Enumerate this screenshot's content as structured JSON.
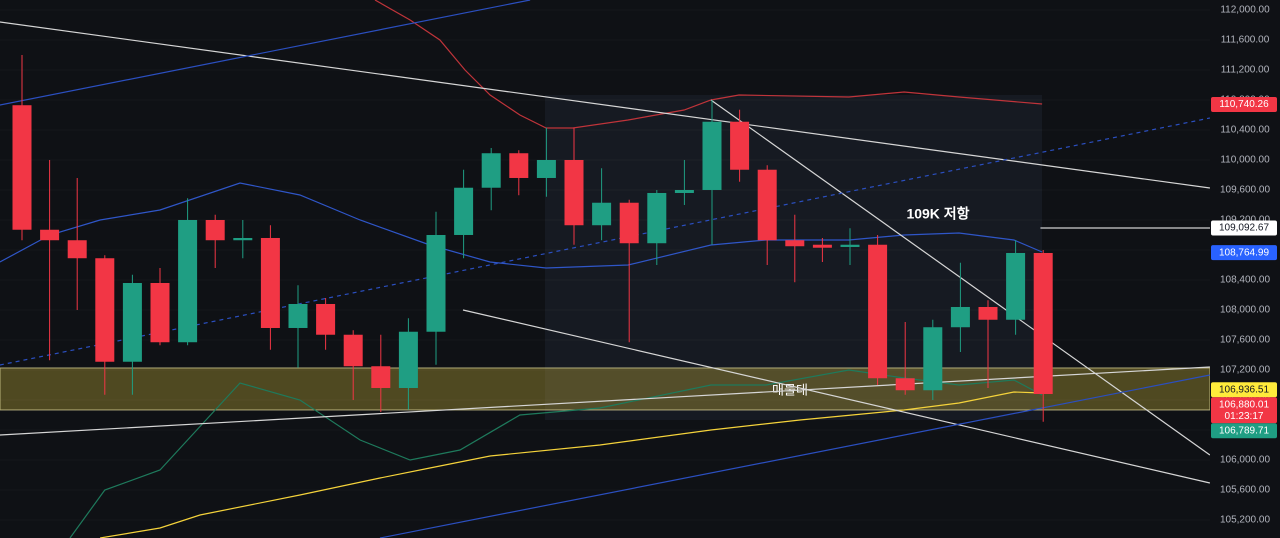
{
  "chart_data": {
    "type": "candlestick",
    "up_color": "#1f9e83",
    "down_color": "#f23645",
    "background": "#0f1115",
    "ylim": [
      104960,
      112133
    ],
    "grid": true,
    "yticks": [
      {
        "value": 112000,
        "label": "112,000.00"
      },
      {
        "value": 111600,
        "label": "111,600.00"
      },
      {
        "value": 111200,
        "label": "111,200.00"
      },
      {
        "value": 110800,
        "label": "110,800.00"
      },
      {
        "value": 110400,
        "label": "110,400.00"
      },
      {
        "value": 110000,
        "label": "110,000.00"
      },
      {
        "value": 109600,
        "label": "109,600.00"
      },
      {
        "value": 109200,
        "label": "109,200.00"
      },
      {
        "value": 108800,
        "label": "108,800.00"
      },
      {
        "value": 108400,
        "label": "108,400.00"
      },
      {
        "value": 108000,
        "label": "108,000.00"
      },
      {
        "value": 107600,
        "label": "107,600.00"
      },
      {
        "value": 107200,
        "label": "107,200.00"
      },
      {
        "value": 106800,
        "label": "106,800.00"
      },
      {
        "value": 106400,
        "label": "106,400.00"
      },
      {
        "value": 106000,
        "label": "106,000.00"
      },
      {
        "value": 105600,
        "label": "105,600.00"
      },
      {
        "value": 105200,
        "label": "105,200.00"
      }
    ],
    "open": [
      110730,
      109070,
      108930,
      108690,
      107310,
      108360,
      107570,
      109200,
      108930,
      108960,
      107760,
      108080,
      107670,
      107250,
      106960,
      107710,
      109000,
      109630,
      110090,
      109760,
      110000,
      109130,
      109430,
      108890,
      109560,
      109600,
      110510,
      109870,
      108930,
      108870,
      108840,
      108870,
      107090,
      106930,
      107770,
      108040,
      107870,
      108760
    ],
    "high": [
      111400,
      110000,
      109760,
      108730,
      108470,
      108560,
      109490,
      109270,
      109200,
      109130,
      108330,
      108160,
      107730,
      107670,
      107890,
      109310,
      109870,
      110160,
      110130,
      110430,
      110430,
      109890,
      109470,
      109600,
      110000,
      110800,
      110670,
      109930,
      109270,
      108960,
      109090,
      109000,
      107840,
      107870,
      108630,
      108130,
      108930,
      108800
    ],
    "low": [
      108930,
      107330,
      108000,
      106870,
      106870,
      107530,
      107530,
      108560,
      108690,
      107470,
      107230,
      107470,
      106800,
      106640,
      106670,
      107270,
      108690,
      109330,
      109530,
      109510,
      108870,
      108930,
      107570,
      108600,
      109400,
      108870,
      109710,
      108600,
      108370,
      108640,
      108600,
      107000,
      106870,
      106800,
      107440,
      106960,
      107670,
      106510
    ],
    "close": [
      109070,
      108930,
      108690,
      107310,
      108360,
      107570,
      109200,
      108930,
      108960,
      107760,
      108080,
      107670,
      107250,
      106960,
      107710,
      109000,
      109630,
      110090,
      109760,
      110000,
      109130,
      109430,
      108890,
      109560,
      109600,
      110510,
      109870,
      108930,
      108850,
      108830,
      108870,
      107090,
      106930,
      107770,
      108040,
      107870,
      108760,
      106880.01
    ],
    "zone": {
      "label": "매물대",
      "low": 106667,
      "high": 107227,
      "color": "#c9b23a"
    },
    "annotation": "109K 저항",
    "overlays": [
      {
        "color": "#c0343a",
        "style": "solid",
        "x": [
          12.79,
          14.06,
          15.14,
          16.05,
          16.96,
          18.04,
          18.99,
          19.96,
          21.96,
          23.99,
          24.96,
          25.98,
          29.96,
          31.96,
          33.95,
          36.96
        ],
        "y": [
          112133,
          111867,
          111600,
          111200,
          110867,
          110600,
          110427,
          110427,
          110533,
          110667,
          110800,
          110867,
          110840,
          110907,
          110840,
          110747
        ]
      },
      {
        "color": "#2f56c8",
        "style": "solid",
        "x": [
          -0.8,
          1.01,
          2.83,
          5.0,
          7.9,
          10.07,
          12.25,
          14.78,
          16.96,
          18.99,
          21.96,
          24.96,
          26.96,
          29.96,
          31.96,
          33.95,
          35.94,
          36.96
        ],
        "y": [
          108640,
          109000,
          109200,
          109333,
          109693,
          109533,
          109200,
          108867,
          108640,
          108560,
          108600,
          108867,
          108933,
          108933,
          109000,
          109027,
          108933,
          108773
        ]
      },
      {
        "color": "#1e7a5c",
        "style": "solid",
        "x": [
          1.74,
          3.0,
          5.0,
          7.9,
          10.07,
          12.25,
          14.06,
          15.87,
          18.04,
          20.94,
          24.96,
          26.96,
          29.96,
          31.96,
          33.95,
          35.94,
          36.96
        ],
        "y": [
          104960,
          105600,
          105867,
          107027,
          106800,
          106267,
          106000,
          106133,
          106600,
          106693,
          107000,
          107000,
          107200,
          107093,
          107000,
          107067,
          106867
        ]
      },
      {
        "color": "#f5d33b",
        "style": "solid",
        "x": [
          2.83,
          5.0,
          6.45,
          10.07,
          12.97,
          14.78,
          16.96,
          20.94,
          24.96,
          28.19,
          31.96,
          33.95,
          35.94,
          36.96
        ],
        "y": [
          104960,
          105093,
          105267,
          105533,
          105760,
          105893,
          106053,
          106200,
          106400,
          106533,
          106667,
          106760,
          106907,
          106893
        ]
      },
      {
        "color": "#d6d6d6",
        "style": "solid",
        "x": [
          -0.8,
          43.04
        ],
        "y": [
          111840,
          109627
        ]
      },
      {
        "color": "#d6d6d6",
        "style": "solid",
        "x": [
          24.96,
          43.04
        ],
        "y": [
          110800,
          106067
        ]
      },
      {
        "color": "#d6d6d6",
        "style": "solid",
        "x": [
          15.98,
          43.04
        ],
        "y": [
          108000,
          105693
        ]
      },
      {
        "color": "#d6d6d6",
        "style": "solid",
        "x": [
          -0.8,
          43.04
        ],
        "y": [
          106333,
          107240
        ]
      },
      {
        "color": "#2b4fc0",
        "style": "solid",
        "x": [
          -0.8,
          18.41
        ],
        "y": [
          110733,
          112133
        ]
      },
      {
        "color": "#2b4fc0",
        "style": "solid",
        "x": [
          12.97,
          43.04
        ],
        "y": [
          104960,
          107133
        ]
      },
      {
        "color": "#2b4fc0",
        "style": "dashed",
        "x": [
          -0.8,
          43.04
        ],
        "y": [
          107267,
          110560
        ]
      }
    ],
    "price_tags": [
      {
        "value": 110740.26,
        "label": "110,740.26",
        "color": "#f23645",
        "text_color": "#ffffff"
      },
      {
        "value": 109092.67,
        "label": "109,092.67",
        "color": "#ffffff",
        "text_color": "#131722",
        "line_from": 36.9
      },
      {
        "value": 108764.99,
        "label": "108,764.99",
        "color": "#2962ff",
        "text_color": "#ffffff"
      },
      {
        "value": 106936.51,
        "label": "106,936.51",
        "color": "#ffeb3b",
        "text_color": "#131722"
      },
      {
        "value": 106880.01,
        "label": "106,880.01",
        "color": "#f23645",
        "text_color": "#ffffff",
        "timer": "01:23:17"
      },
      {
        "value": 106789.71,
        "label": "106,789.71",
        "color": "#1f9e83",
        "text_color": "#ffffff"
      }
    ]
  }
}
